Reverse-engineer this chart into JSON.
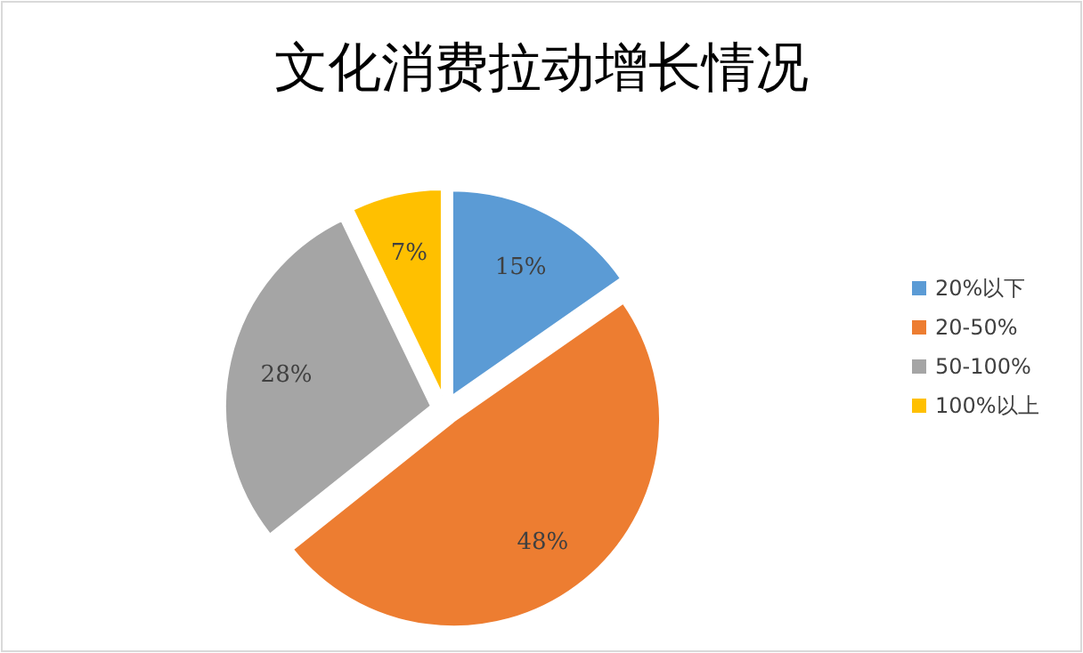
{
  "chart_data": {
    "type": "pie",
    "title": "文化消费拉动增长情况",
    "categories": [
      "20%以下",
      "20-50%",
      "50-100%",
      "100%以上"
    ],
    "values": [
      15,
      48,
      28,
      7
    ],
    "colors": [
      "#5b9bd5",
      "#ed7d31",
      "#a5a5a5",
      "#ffc000"
    ],
    "value_labels": [
      "15%",
      "48%",
      "28%",
      "7%"
    ],
    "legend": "right"
  }
}
